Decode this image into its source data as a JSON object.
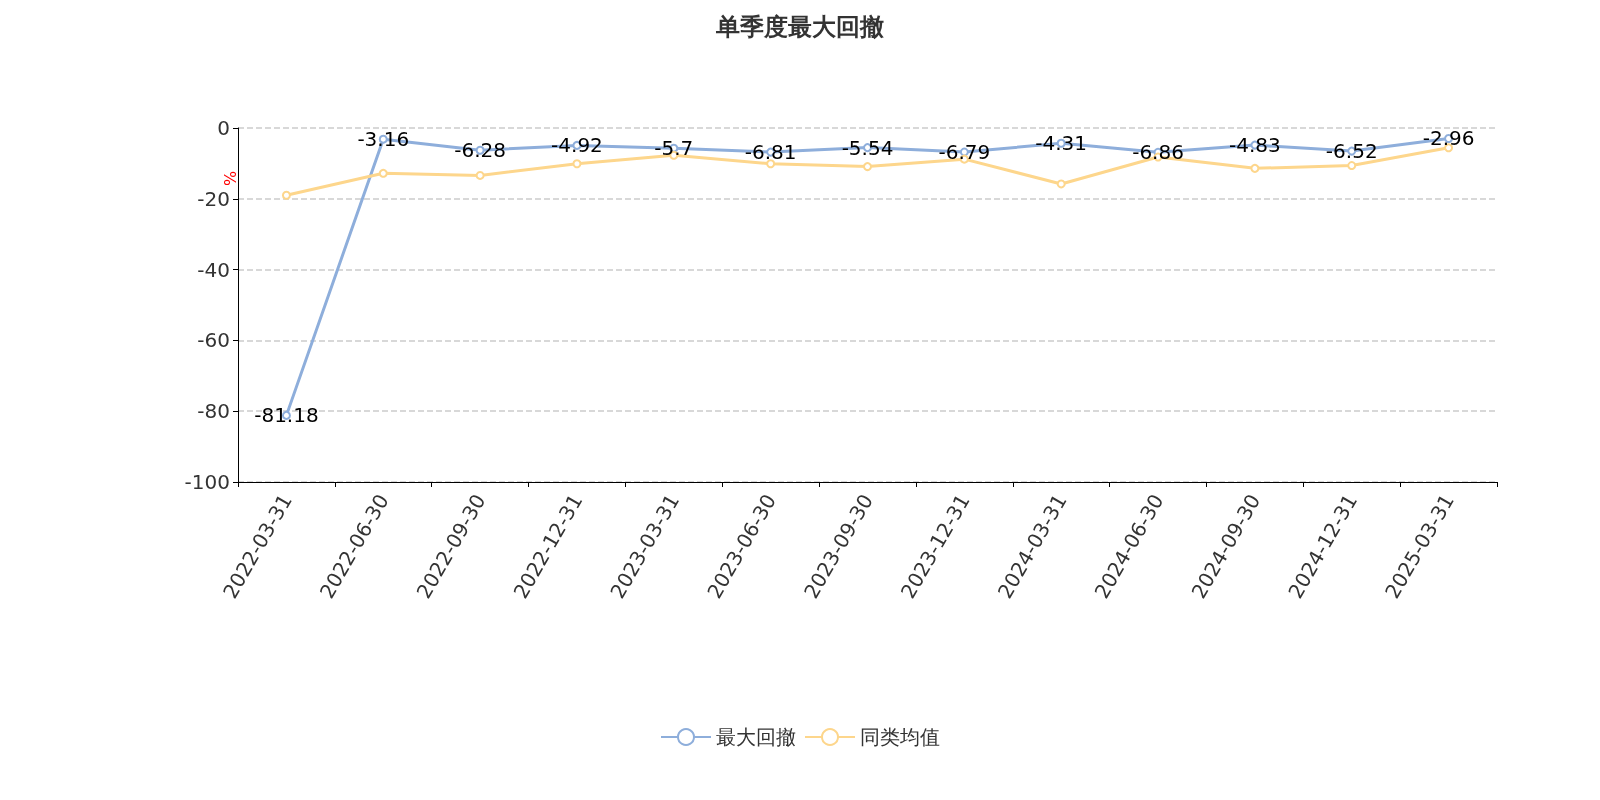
{
  "chart_data": {
    "type": "line",
    "title": "单季度最大回撤",
    "ylabel": "%",
    "categories": [
      "2022-03-31",
      "2022-06-30",
      "2022-09-30",
      "2022-12-31",
      "2023-03-31",
      "2023-06-30",
      "2023-09-30",
      "2023-12-31",
      "2024-03-31",
      "2024-06-30",
      "2024-09-30",
      "2024-12-31",
      "2025-03-31"
    ],
    "series": [
      {
        "name": "最大回撤",
        "color": "#8eaedb",
        "values": [
          -81.18,
          -3.16,
          -6.28,
          -4.92,
          -5.7,
          -6.81,
          -5.54,
          -6.79,
          -4.31,
          -6.86,
          -4.83,
          -6.52,
          -2.96
        ],
        "data_labels": true
      },
      {
        "name": "同类均值",
        "color": "#fdd68c",
        "values": [
          -19,
          -12.8,
          -13.4,
          -10.1,
          -7.7,
          -10.1,
          -10.9,
          -8.8,
          -15.8,
          -8.2,
          -11.4,
          -10.6,
          -5.6
        ]
      }
    ],
    "ylim": [
      -100,
      0
    ],
    "yticks": [
      -100,
      -80,
      -60,
      -40,
      -20,
      0
    ],
    "grid": "y",
    "legend": "bottom",
    "marker": "circle",
    "line_style": "solid"
  }
}
